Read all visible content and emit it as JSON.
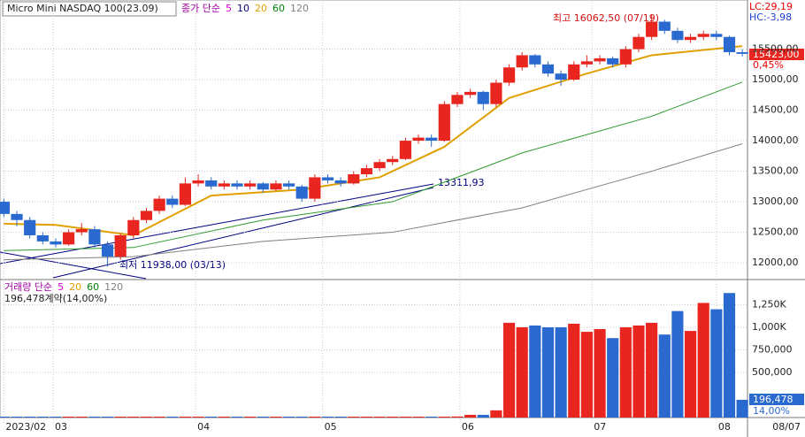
{
  "chart_data": {
    "type": "candlestick",
    "title": "Micro Mini NASDAQ 100(23.09)",
    "legend": [
      {
        "name": "종가 단순",
        "color": "#a000a0"
      },
      {
        "name": "5",
        "color": "#d000d0"
      },
      {
        "name": "10",
        "color": "#000080"
      },
      {
        "name": "20",
        "color": "#e0a000"
      },
      {
        "name": "60",
        "color": "#008000"
      },
      {
        "name": "120",
        "color": "#808080"
      }
    ],
    "xlim": [
      -0.3,
      57.4
    ],
    "xticks": [
      {
        "value": 0,
        "label": "2023/02"
      },
      {
        "value": 3.8,
        "label": "03"
      },
      {
        "value": 14.8,
        "label": "04"
      },
      {
        "value": 24.6,
        "label": "05"
      },
      {
        "value": 35.2,
        "label": "06"
      },
      {
        "value": 45.4,
        "label": "07"
      },
      {
        "value": 55,
        "label": "08"
      }
    ],
    "last_date": "08/07",
    "ylim": [
      11740,
      16305
    ],
    "yticks": [
      {
        "value": 12000,
        "label": "12000,00"
      },
      {
        "value": 12500,
        "label": "12500,00"
      },
      {
        "value": 13000,
        "label": "13000,00"
      },
      {
        "value": 13500,
        "label": "13500,00"
      },
      {
        "value": 14000,
        "label": "14000,00"
      },
      {
        "value": 14500,
        "label": "14500,00"
      },
      {
        "value": 15000,
        "label": "15000,00"
      },
      {
        "value": 15500,
        "label": "15500,00"
      }
    ],
    "up_color": "#e8251e",
    "down_color": "#2a6ad0",
    "candles": [
      [
        13000,
        13050,
        12750,
        12800
      ],
      [
        12800,
        12850,
        12600,
        12700
      ],
      [
        12700,
        12750,
        12400,
        12450
      ],
      [
        12450,
        12500,
        12300,
        12350
      ],
      [
        12350,
        12400,
        12250,
        12300
      ],
      [
        12300,
        12550,
        12280,
        12500
      ],
      [
        12500,
        12650,
        12450,
        12550
      ],
      [
        12550,
        12600,
        12250,
        12300
      ],
      [
        12300,
        12350,
        11938,
        12100
      ],
      [
        12100,
        12480,
        12050,
        12450
      ],
      [
        12450,
        12750,
        12400,
        12700
      ],
      [
        12700,
        12900,
        12650,
        12850
      ],
      [
        12850,
        13100,
        12800,
        13050
      ],
      [
        13050,
        13100,
        12900,
        12950
      ],
      [
        12950,
        13400,
        12930,
        13300
      ],
      [
        13300,
        13450,
        13250,
        13350
      ],
      [
        13350,
        13400,
        13200,
        13250
      ],
      [
        13250,
        13350,
        13200,
        13300
      ],
      [
        13300,
        13350,
        13200,
        13250
      ],
      [
        13250,
        13350,
        13200,
        13300
      ],
      [
        13300,
        13320,
        13150,
        13200
      ],
      [
        13200,
        13350,
        13180,
        13300
      ],
      [
        13300,
        13350,
        13200,
        13250
      ],
      [
        13250,
        13280,
        13000,
        13050
      ],
      [
        13050,
        13450,
        13000,
        13400
      ],
      [
        13400,
        13450,
        13300,
        13350
      ],
      [
        13350,
        13400,
        13250,
        13300
      ],
      [
        13300,
        13500,
        13280,
        13450
      ],
      [
        13450,
        13600,
        13400,
        13550
      ],
      [
        13550,
        13700,
        13500,
        13650
      ],
      [
        13650,
        13750,
        13600,
        13700
      ],
      [
        13700,
        14050,
        13680,
        14000
      ],
      [
        14000,
        14100,
        13950,
        14050
      ],
      [
        14050,
        14100,
        13900,
        14000
      ],
      [
        14000,
        14650,
        13980,
        14600
      ],
      [
        14600,
        14800,
        14550,
        14750
      ],
      [
        14750,
        14850,
        14700,
        14800
      ],
      [
        14800,
        14820,
        14500,
        14600
      ],
      [
        14600,
        15000,
        14550,
        14950
      ],
      [
        14950,
        15250,
        14900,
        15200
      ],
      [
        15200,
        15450,
        15150,
        15400
      ],
      [
        15400,
        15420,
        15200,
        15250
      ],
      [
        15250,
        15300,
        15050,
        15100
      ],
      [
        15100,
        15150,
        14900,
        15000
      ],
      [
        15000,
        15300,
        14980,
        15250
      ],
      [
        15250,
        15400,
        15200,
        15300
      ],
      [
        15300,
        15400,
        15250,
        15350
      ],
      [
        15350,
        15380,
        15200,
        15250
      ],
      [
        15250,
        15550,
        15200,
        15500
      ],
      [
        15500,
        15750,
        15450,
        15700
      ],
      [
        15700,
        16062.5,
        15650,
        15950
      ],
      [
        15950,
        15980,
        15750,
        15800
      ],
      [
        15800,
        15850,
        15600,
        15650
      ],
      [
        15650,
        15750,
        15600,
        15700
      ],
      [
        15700,
        15800,
        15650,
        15750
      ],
      [
        15750,
        15800,
        15650,
        15700
      ],
      [
        15700,
        15720,
        15400,
        15450
      ],
      [
        15450,
        15500,
        15380,
        15423
      ]
    ],
    "ma_series": [
      {
        "name": "20",
        "color": "#e0a000",
        "x": [
          0,
          4,
          10,
          16,
          23,
          29,
          34,
          39,
          45,
          50,
          57
        ],
        "values": [
          12640,
          12620,
          12450,
          13100,
          13200,
          13400,
          13900,
          14700,
          15100,
          15400,
          15550
        ]
      },
      {
        "name": "60",
        "color": "#2e9a2e",
        "x": [
          0,
          10,
          20,
          30,
          40,
          50,
          57
        ],
        "values": [
          12200,
          12250,
          12700,
          13000,
          13800,
          14400,
          14960
        ]
      },
      {
        "name": "120",
        "color": "#808080",
        "x": [
          0,
          10,
          20,
          30,
          40,
          50,
          57
        ],
        "values": [
          12050,
          12100,
          12350,
          12500,
          12900,
          13500,
          13950
        ]
      }
    ],
    "annotations": {
      "high": "최고 16062,50 (07/19)",
      "low": "최저 11938,00 (03/13)",
      "trend": "13311,93"
    },
    "lc": "LC:29,19",
    "hc": "HC:-3,98",
    "last_price": "15423,00",
    "change": "0,45%",
    "volume": {
      "legend": [
        {
          "name": "거래량 단순",
          "color": "#a000a0"
        },
        {
          "name": "5",
          "color": "#d000d0"
        },
        {
          "name": "20",
          "color": "#e0a000"
        },
        {
          "name": "60",
          "color": "#008000"
        },
        {
          "name": "120",
          "color": "#808080"
        }
      ],
      "info": "196,478계약(14,00%)",
      "ylim": [
        0,
        1500000
      ],
      "yticks": [
        {
          "value": 500000,
          "label": "500,000"
        },
        {
          "value": 750000,
          "label": "750,000"
        },
        {
          "value": 1000000,
          "label": "1,000K"
        },
        {
          "value": 1250000,
          "label": "1,250K"
        }
      ],
      "values": [
        10000,
        10000,
        10000,
        10000,
        10000,
        10000,
        10000,
        10000,
        10000,
        10000,
        10000,
        10000,
        10000,
        10000,
        10000,
        10000,
        10000,
        10000,
        10000,
        10000,
        10000,
        10000,
        10000,
        10000,
        10000,
        10000,
        10000,
        10000,
        10000,
        10000,
        10000,
        10000,
        10000,
        10000,
        10000,
        12000,
        30000,
        30000,
        80000,
        1050000,
        1000000,
        1020000,
        1000000,
        1000000,
        1040000,
        950000,
        980000,
        880000,
        1000000,
        1020000,
        1050000,
        920000,
        1180000,
        960000,
        1270000,
        1200000,
        1380000,
        196478
      ],
      "last": "196,478",
      "pct": "14,00%"
    }
  }
}
